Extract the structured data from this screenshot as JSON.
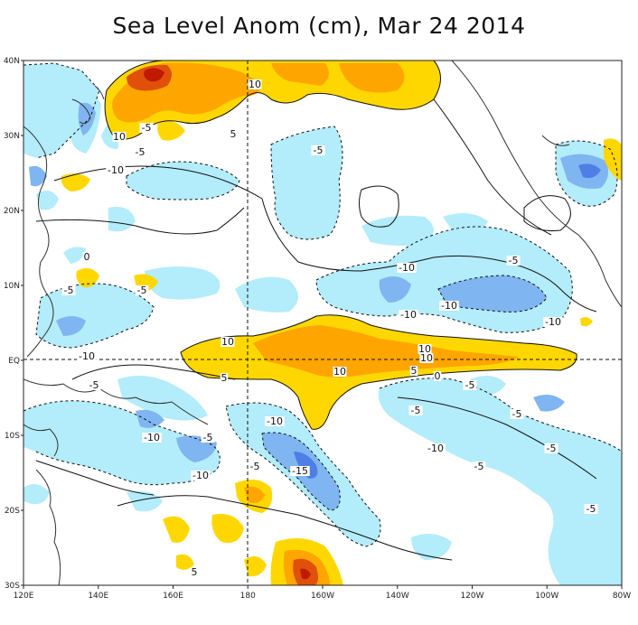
{
  "title": "Sea Level Anom (cm), Mar 24 2014",
  "colors": {
    "warm_light": "#ffd700",
    "warm_mid": "#ffa500",
    "warm_dark": "#e0500a",
    "warm_deep": "#c01a00",
    "cool_light": "#b3ecfa",
    "cool_mid": "#7fb5f0",
    "cool_dark": "#4d7fe6",
    "land_line": "#444444"
  },
  "axes": {
    "x_ticks": [
      "120E",
      "140E",
      "160E",
      "180",
      "160W",
      "140W",
      "120W",
      "100W",
      "80W"
    ],
    "y_ticks": [
      "40N",
      "30N",
      "20N",
      "10N",
      "EQ",
      "10S",
      "20S",
      "30S"
    ]
  },
  "contour_labels": [
    "10",
    "10",
    "-5",
    "5",
    "-5",
    "-10",
    "0",
    "-5",
    "-10",
    "-5",
    "-5",
    "-5",
    "-10",
    "-10",
    "-10",
    "-5",
    "-10",
    "10",
    "10",
    "5",
    "10",
    "10",
    "5",
    "0",
    "-5",
    "-5",
    "-10",
    "-5",
    "-10",
    "-10",
    "-5",
    "-15",
    "-5",
    "-10",
    "-5",
    "-5",
    "-5",
    "5"
  ]
}
